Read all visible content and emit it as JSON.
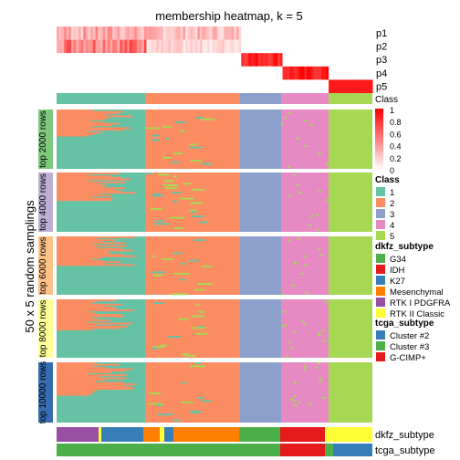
{
  "chart_data": {
    "type": "heatmap",
    "title": "membership heatmap, k = 5",
    "ylabel": "50 x 5 random samplings",
    "membership_rows": [
      "p1",
      "p2",
      "p3",
      "p4",
      "p5"
    ],
    "class_label": "Class",
    "color_scale": {
      "ticks": [
        "1",
        "0.8",
        "0.6",
        "0.4",
        "0.2",
        "0"
      ],
      "low": "#ffffff",
      "high": "#ff0000"
    },
    "class_legend": {
      "title": "Class",
      "items": [
        {
          "label": "1",
          "color": "#66c2a5"
        },
        {
          "label": "2",
          "color": "#fc8d62"
        },
        {
          "label": "3",
          "color": "#8da0cb"
        },
        {
          "label": "4",
          "color": "#e78ac3"
        },
        {
          "label": "5",
          "color": "#a6d854"
        }
      ]
    },
    "dkfz_legend": {
      "title": "dkfz_subtype",
      "items": [
        {
          "label": "G34",
          "color": "#4daf4a"
        },
        {
          "label": "IDH",
          "color": "#e41a1c"
        },
        {
          "label": "K27",
          "color": "#377eb8"
        },
        {
          "label": "Mesenchymal",
          "color": "#ff7f00"
        },
        {
          "label": "RTK I PDGFRA",
          "color": "#984ea3"
        },
        {
          "label": "RTK II Classic",
          "color": "#ffff33"
        }
      ]
    },
    "tcga_legend": {
      "title": "tcga_subtype",
      "items": [
        {
          "label": "Cluster #2",
          "color": "#377eb8"
        },
        {
          "label": "Cluster #3",
          "color": "#4daf4a"
        },
        {
          "label": "G-CIMP+",
          "color": "#e41a1c"
        }
      ]
    },
    "row_groups": [
      {
        "label": "top 2000 rows",
        "color": "#7fc97f"
      },
      {
        "label": "top 4000 rows",
        "color": "#beaed4"
      },
      {
        "label": "top 6000 rows",
        "color": "#fdc086"
      },
      {
        "label": "top 8000 rows",
        "color": "#ffff99"
      },
      {
        "label": "top 10000 rows",
        "color": "#386cb0"
      }
    ],
    "column_classes": [
      {
        "class": "1",
        "fraction": 0.28
      },
      {
        "class": "2",
        "fraction": 0.3
      },
      {
        "class": "3",
        "fraction": 0.13
      },
      {
        "class": "4",
        "fraction": 0.15
      },
      {
        "class": "5",
        "fraction": 0.14
      }
    ],
    "bottom_annotations": [
      "dkfz_subtype",
      "tcga_subtype"
    ]
  }
}
